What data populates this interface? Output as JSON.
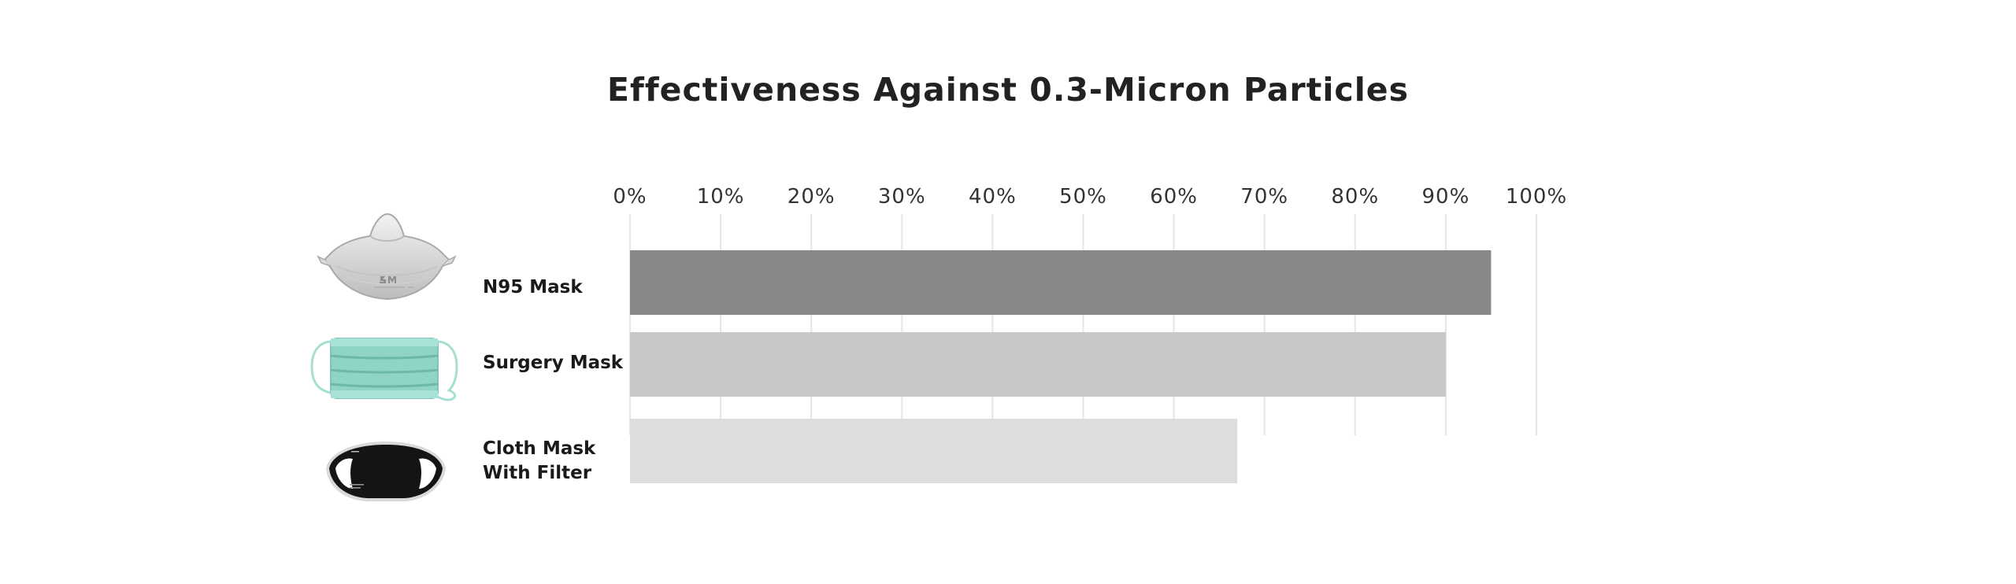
{
  "chart_data": {
    "type": "bar",
    "orientation": "horizontal",
    "title": "Effectiveness Against 0.3-Micron Particles",
    "categories": [
      "N95 Mask",
      "Surgery Mask",
      "Cloth Mask With Filter"
    ],
    "category_lines": [
      [
        "N95 Mask"
      ],
      [
        "Surgery Mask"
      ],
      [
        "Cloth Mask",
        "With Filter"
      ]
    ],
    "values": [
      95,
      90,
      67
    ],
    "xlim": [
      0,
      100
    ],
    "ticks": [
      0,
      10,
      20,
      30,
      40,
      50,
      60,
      70,
      80,
      90,
      100
    ],
    "tick_labels": [
      "0%",
      "10%",
      "20%",
      "30%",
      "40%",
      "50%",
      "60%",
      "70%",
      "80%",
      "90%",
      "100%"
    ],
    "xlabel": "",
    "ylabel": "",
    "grid": true,
    "colors": [
      "#898889",
      "#c8c8c8",
      "#dddddd"
    ],
    "icons": [
      "n95-mask-icon",
      "surgical-mask-icon",
      "cloth-mask-icon"
    ]
  }
}
